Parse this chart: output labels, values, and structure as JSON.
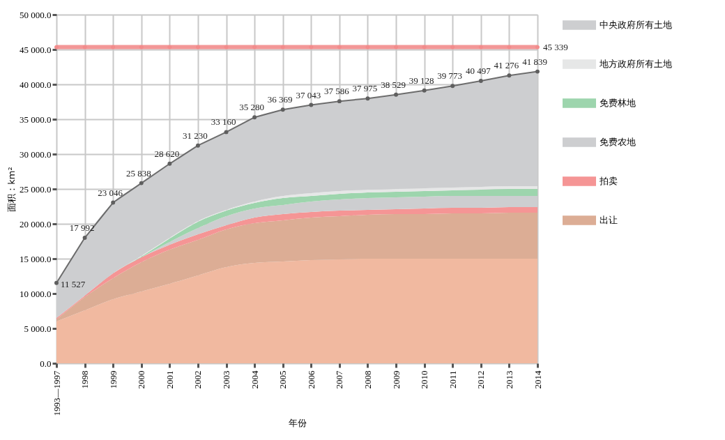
{
  "chart_data": {
    "type": "area",
    "stacked": true,
    "xlabel": "年份",
    "ylabel": "面积：km²",
    "categories": [
      "1993—1997",
      "1998",
      "1999",
      "2000",
      "2001",
      "2002",
      "2003",
      "2004",
      "2005",
      "2006",
      "2007",
      "2008",
      "2009",
      "2010",
      "2011",
      "2012",
      "2013",
      "2014"
    ],
    "ylim": [
      0,
      50000
    ],
    "yticks": [
      {
        "value": 0,
        "label": "0.0"
      },
      {
        "value": 5000,
        "label": "5 000.0"
      },
      {
        "value": 10000,
        "label": "10 000.0"
      },
      {
        "value": 15000,
        "label": "15 000.0"
      },
      {
        "value": 20000,
        "label": "20 000.0"
      },
      {
        "value": 25000,
        "label": "25 000.0"
      },
      {
        "value": 30000,
        "label": "30 000.0"
      },
      {
        "value": 35000,
        "label": "35 000.0"
      },
      {
        "value": 40000,
        "label": "40 000.0"
      },
      {
        "value": 45000,
        "label": "45 000.0"
      },
      {
        "value": 50000,
        "label": "50 000.0"
      }
    ],
    "grid": true,
    "legend": "right",
    "totals": [
      "11 527",
      "17 992",
      "23 046",
      "25 838",
      "28 620",
      "31 230",
      "33 160",
      "35 280",
      "36 369",
      "37 043",
      "37 586",
      "37 975",
      "38 529",
      "39 128",
      "39 773",
      "40 497",
      "41 276",
      "41 839"
    ],
    "series": [
      {
        "color": "#f1b9a0",
        "values": [
          6000,
          7600,
          9200,
          10300,
          11400,
          12600,
          13800,
          14400,
          14600,
          14800,
          14900,
          15000,
          15000,
          15000,
          15000,
          15000,
          15000,
          15000
        ]
      },
      {
        "name": "出让",
        "color": "#dcad95",
        "values": [
          300,
          1900,
          3000,
          4200,
          4900,
          5100,
          5400,
          5700,
          5900,
          6100,
          6200,
          6300,
          6400,
          6400,
          6500,
          6500,
          6600,
          6600
        ]
      },
      {
        "name": "拍卖",
        "color": "#f59595",
        "values": [
          200,
          200,
          700,
          700,
          700,
          800,
          600,
          800,
          900,
          800,
          800,
          700,
          700,
          800,
          800,
          800,
          800,
          800
        ]
      },
      {
        "name": "免费农地",
        "color": "#cdced0",
        "values": [
          0,
          0,
          0,
          0,
          400,
          900,
          1300,
          1300,
          1300,
          1500,
          1600,
          1700,
          1700,
          1700,
          1700,
          1700,
          1600,
          1600
        ]
      },
      {
        "name": "免费林地",
        "color": "#9dd5ad",
        "values": [
          0,
          0,
          0,
          100,
          500,
          900,
          800,
          800,
          1000,
          800,
          800,
          800,
          800,
          800,
          800,
          900,
          1000,
          1000
        ]
      },
      {
        "name": "地方政府所有土地",
        "color": "#e6e7e7",
        "values": [
          0,
          0,
          0,
          100,
          100,
          100,
          100,
          200,
          300,
          400,
          400,
          400,
          400,
          400,
          400,
          400,
          400,
          400
        ]
      },
      {
        "name": "中央政府所有土地",
        "color": "#cdced0",
        "marker": "circle",
        "values": [
          5027,
          8292,
          10146,
          10438,
          10620,
          10830,
          11160,
          12080,
          12369,
          12643,
          12886,
          13075,
          13529,
          14028,
          14573,
          15197,
          15876,
          16439
        ]
      },
      {
        "type": "line",
        "color": "#f28c8c",
        "marker": "circle",
        "values": [
          45339,
          45339,
          45339,
          45339,
          45339,
          45339,
          45339,
          45339,
          45339,
          45339,
          45339,
          45339,
          45339,
          45339,
          45339,
          45339,
          45339,
          45339
        ],
        "value_labels": [
          null,
          null,
          null,
          null,
          null,
          null,
          null,
          null,
          null,
          null,
          null,
          null,
          null,
          null,
          null,
          null,
          null,
          "45 339"
        ]
      }
    ]
  }
}
